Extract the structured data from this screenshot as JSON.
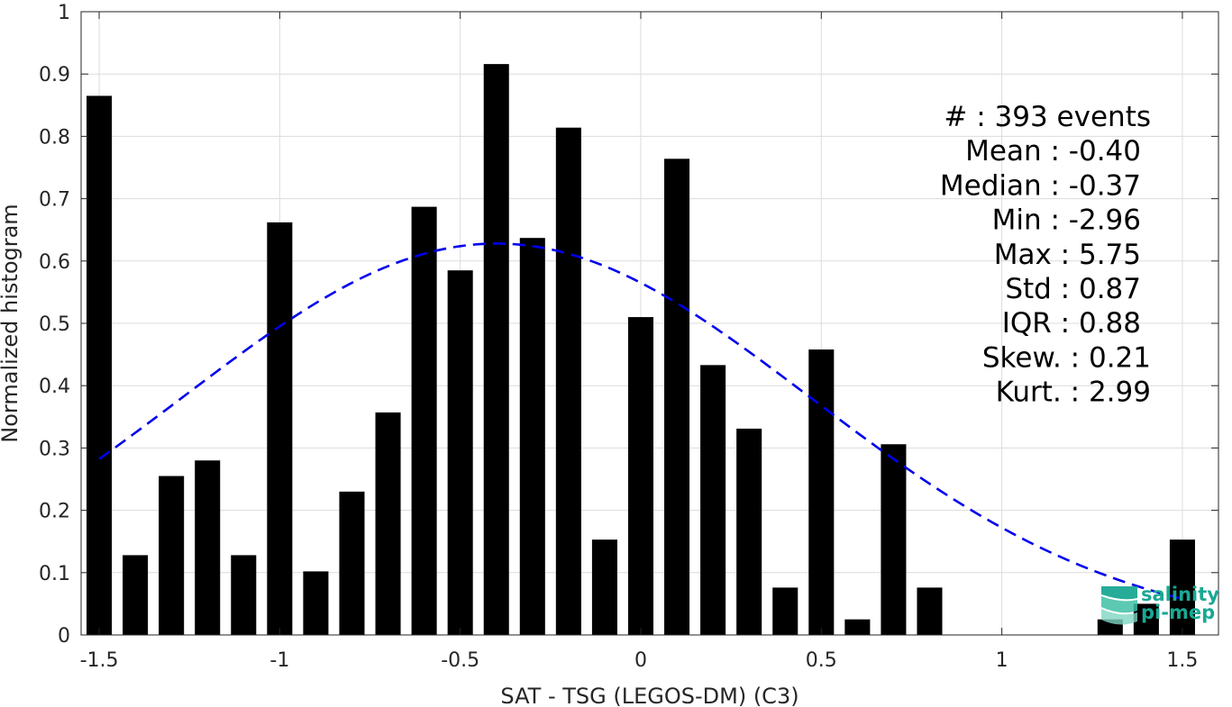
{
  "chart_data": {
    "type": "bar",
    "xlabel": "SAT - TSG (LEGOS-DM) (C3)",
    "ylabel": "Normalized histogram",
    "xlim": [
      -1.55,
      1.6
    ],
    "ylim": [
      0,
      1
    ],
    "grid": true,
    "x_ticks": [
      -1.5,
      -1,
      -0.5,
      0,
      0.5,
      1,
      1.5
    ],
    "x_tick_labels": [
      "-1.5",
      "-1",
      "-0.5",
      "0",
      "0.5",
      "1",
      "1.5"
    ],
    "y_ticks": [
      0,
      0.1,
      0.2,
      0.3,
      0.4,
      0.5,
      0.6,
      0.7,
      0.8,
      0.9,
      1
    ],
    "y_tick_labels": [
      "0",
      "0.1",
      "0.2",
      "0.3",
      "0.4",
      "0.5",
      "0.6",
      "0.7",
      "0.8",
      "0.9",
      "1"
    ],
    "bar_width": 0.07,
    "bar_color": "#000000",
    "x": [
      -1.5,
      -1.4,
      -1.3,
      -1.2,
      -1.1,
      -1.0,
      -0.9,
      -0.8,
      -0.7,
      -0.6,
      -0.5,
      -0.4,
      -0.3,
      -0.2,
      -0.1,
      0.0,
      0.1,
      0.2,
      0.3,
      0.4,
      0.5,
      0.6,
      0.7,
      0.8,
      0.9,
      1.0,
      1.1,
      1.2,
      1.3,
      1.4,
      1.5
    ],
    "values": [
      0.865,
      0.128,
      0.255,
      0.28,
      0.128,
      0.662,
      0.102,
      0.23,
      0.357,
      0.687,
      0.585,
      0.916,
      0.637,
      0.814,
      0.153,
      0.51,
      0.764,
      0.433,
      0.331,
      0.076,
      0.458,
      0.025,
      0.306,
      0.076,
      0,
      0,
      0,
      0,
      0.025,
      0.05,
      0.153
    ],
    "fit_curve": {
      "type": "gaussian",
      "mean": -0.4,
      "std": 0.87,
      "peak": 0.628,
      "x_range": [
        -1.5,
        1.5
      ],
      "color": "#0000ee",
      "style": "dashed"
    },
    "stats": [
      "#  : 393 events",
      "Mean : -0.40",
      "Median : -0.37",
      "Min : -2.96",
      "Max : 5.75",
      "Std : 0.87",
      "IQR : 0.88",
      "Skew. : 0.21",
      "Kurt. : 2.99"
    ]
  },
  "logo": {
    "line1": "salinity",
    "line2": "pi-mep",
    "color": "#1aa893"
  }
}
